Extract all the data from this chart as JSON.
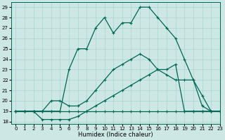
{
  "title": "",
  "xlabel": "Humidex (Indice chaleur)",
  "xlim": [
    -0.5,
    23
  ],
  "ylim": [
    17.8,
    29.5
  ],
  "xticks": [
    0,
    1,
    2,
    3,
    4,
    5,
    6,
    7,
    8,
    9,
    10,
    11,
    12,
    13,
    14,
    15,
    16,
    17,
    18,
    19,
    20,
    21,
    22,
    23
  ],
  "yticks": [
    18,
    19,
    20,
    21,
    22,
    23,
    24,
    25,
    26,
    27,
    28,
    29
  ],
  "bg_color": "#cde8e4",
  "grid_color": "#a8d4ce",
  "line_color": "#006655",
  "lines": [
    {
      "x": [
        0,
        1,
        2,
        3,
        4,
        5,
        6,
        7,
        8,
        9,
        10,
        11,
        12,
        13,
        14,
        15,
        16,
        17,
        18,
        19,
        20,
        21,
        22,
        23
      ],
      "y": [
        19,
        19,
        19,
        19,
        19,
        19,
        19,
        19,
        19,
        19,
        19,
        19,
        19,
        19,
        19,
        19,
        19,
        19,
        19,
        19,
        19,
        19,
        19,
        19
      ]
    },
    {
      "x": [
        0,
        1,
        2,
        3,
        4,
        5,
        6,
        7,
        8,
        9,
        10,
        11,
        12,
        13,
        14,
        15,
        16,
        17,
        18,
        19,
        20,
        21,
        22,
        23
      ],
      "y": [
        19,
        19,
        19,
        18.2,
        18.2,
        18.2,
        18.2,
        18.5,
        19,
        19.5,
        20,
        20.5,
        21,
        21.5,
        22,
        22.5,
        23,
        23,
        23.5,
        19,
        19,
        19,
        19,
        19
      ]
    },
    {
      "x": [
        0,
        1,
        2,
        3,
        4,
        5,
        6,
        7,
        8,
        9,
        10,
        11,
        12,
        13,
        14,
        15,
        16,
        17,
        18,
        19,
        20,
        21,
        22,
        23
      ],
      "y": [
        19,
        19,
        19,
        19,
        20,
        20,
        19.5,
        19.5,
        20,
        21,
        22,
        23,
        23.5,
        24,
        24.5,
        24,
        23,
        22.5,
        22,
        22,
        22,
        19.5,
        19,
        19
      ]
    },
    {
      "x": [
        0,
        1,
        2,
        3,
        4,
        5,
        6,
        7,
        8,
        9,
        10,
        11,
        12,
        13,
        14,
        15,
        16,
        17,
        18,
        19,
        20,
        21,
        22,
        23
      ],
      "y": [
        19,
        19,
        19,
        19,
        19,
        19,
        23,
        25,
        25,
        27,
        28,
        26.5,
        27.5,
        27.5,
        29,
        29,
        28,
        27,
        26,
        24,
        22,
        20.5,
        19,
        19
      ]
    }
  ],
  "marker": "+",
  "markersize": 3,
  "linewidth": 0.9,
  "label_fontsize": 6,
  "tick_fontsize": 5
}
